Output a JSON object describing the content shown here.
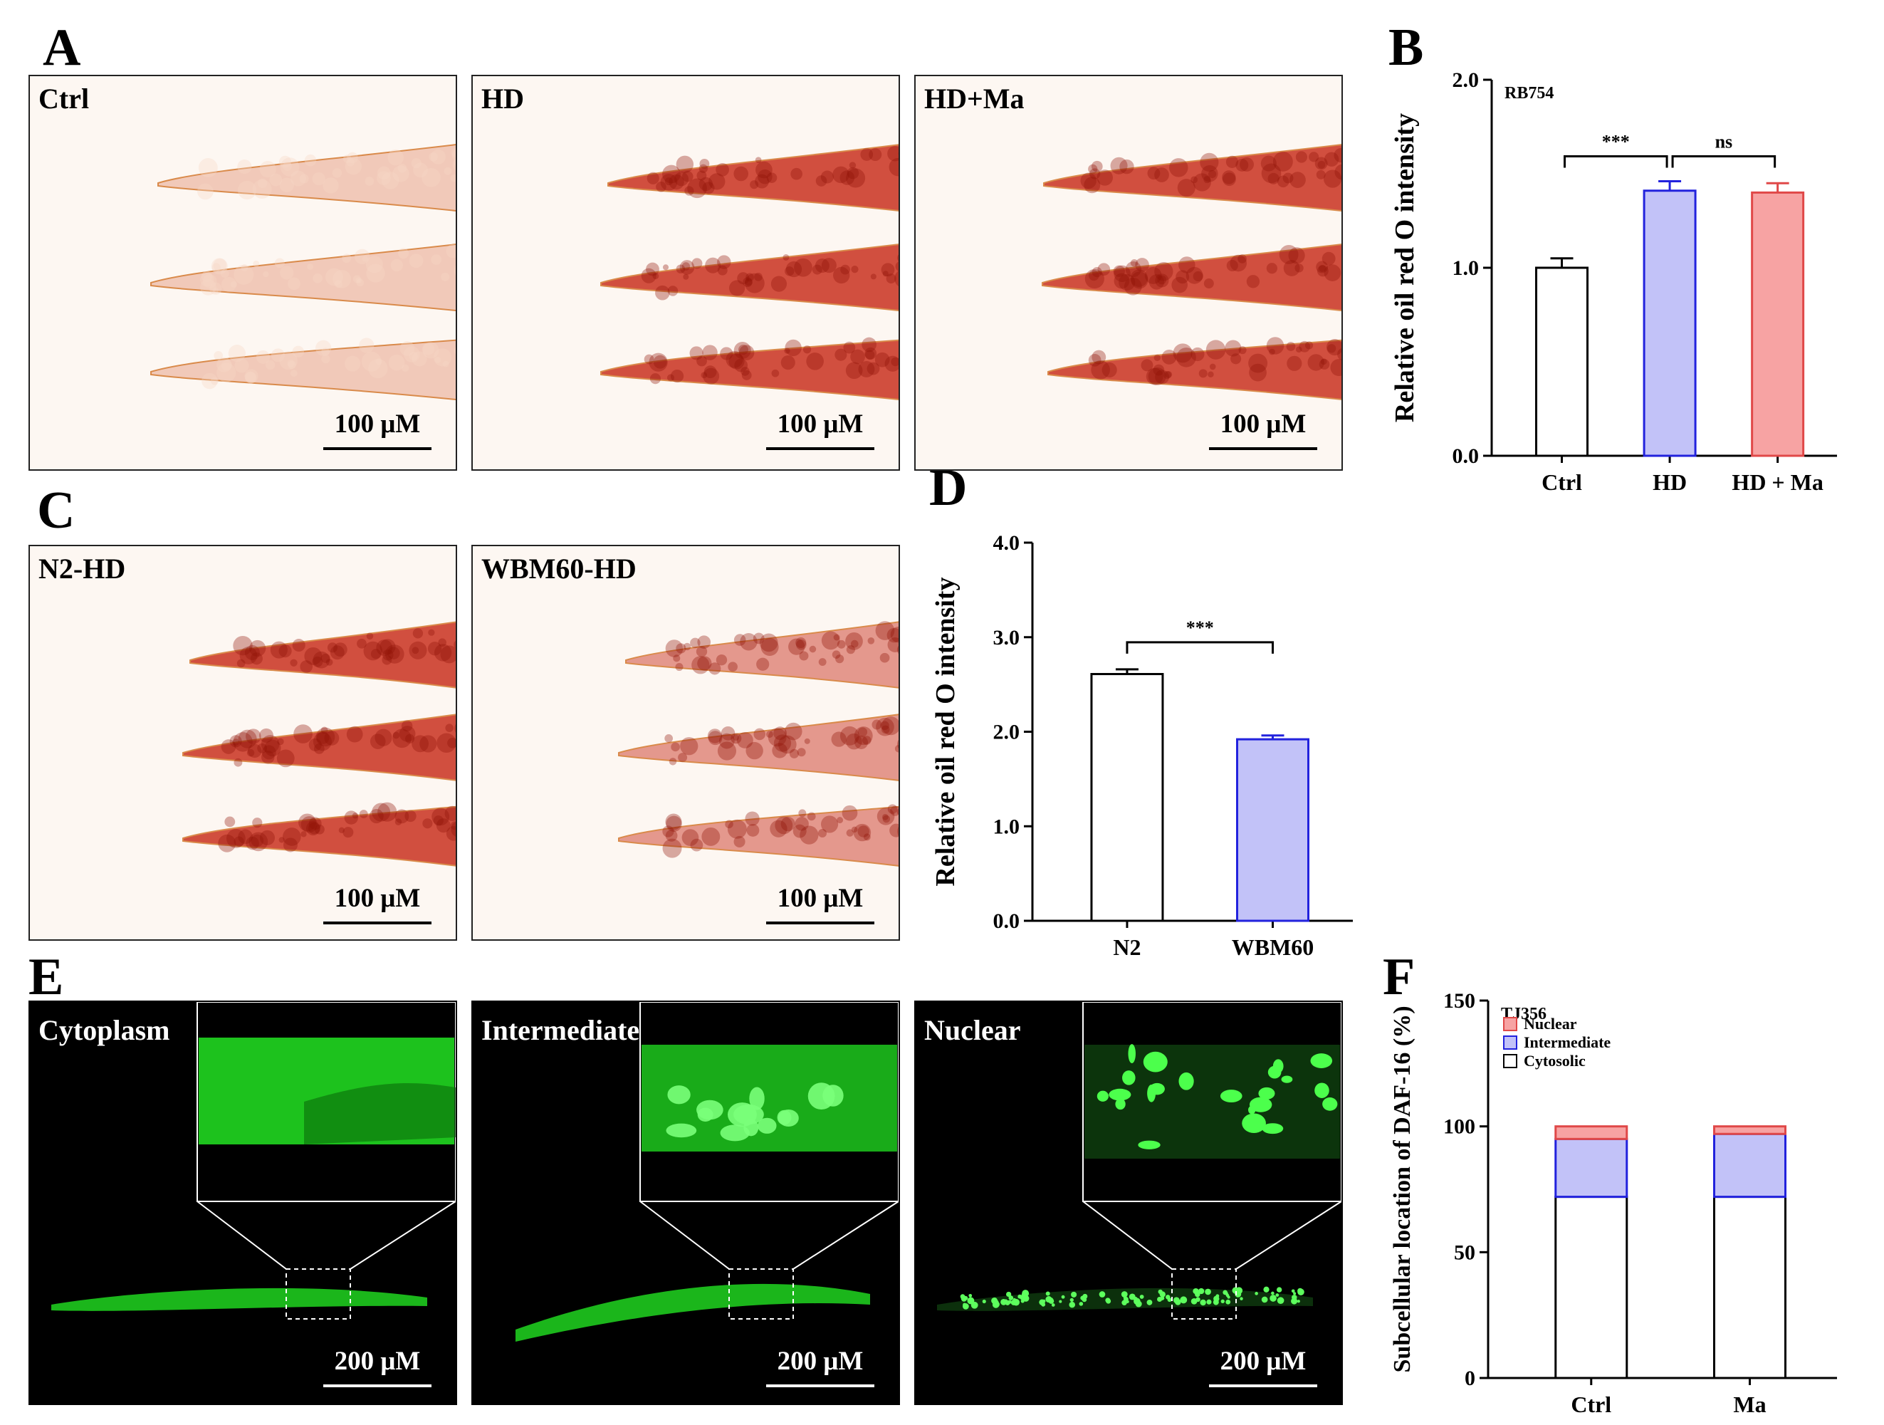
{
  "panel_labels": {
    "a": "A",
    "b": "B",
    "c": "C",
    "d": "D",
    "e": "E",
    "f": "F"
  },
  "colors": {
    "worm_light": "#e8a48a",
    "worm_dark": "#c62412",
    "gfp": "#22e422",
    "bar_ctrl": "#ffffff",
    "bar_hd": "#c2c2f8",
    "bar_hd_edge": "#2222dd",
    "bar_ma": "#f7a3a3",
    "bar_ma_edge": "#e04848"
  },
  "panel_a": {
    "images": [
      {
        "title": "Ctrl",
        "scale": "100 μM",
        "tone": "light"
      },
      {
        "title": "HD",
        "scale": "100 μM",
        "tone": "dark"
      },
      {
        "title": "HD+Ma",
        "scale": "100 μM",
        "tone": "dark"
      }
    ]
  },
  "panel_c": {
    "images": [
      {
        "title": "N2-HD",
        "scale": "100 μM",
        "tone": "dark"
      },
      {
        "title": "WBM60-HD",
        "scale": "100 μM",
        "tone": "medium"
      }
    ]
  },
  "panel_e": {
    "images": [
      {
        "title": "Cytoplasm",
        "scale": "200 μM",
        "pattern": "diffuse"
      },
      {
        "title": "Intermediate",
        "scale": "200 μM",
        "pattern": "intermediate"
      },
      {
        "title": "Nuclear",
        "scale": "200 μM",
        "pattern": "nuclear"
      }
    ]
  },
  "chart_data": [
    {
      "panel": "B",
      "type": "bar",
      "title": "RB754",
      "ylabel": "Relative oil red O intensity",
      "ylim": [
        0,
        2.0
      ],
      "yticks": [
        "0.0",
        "1.0",
        "2.0"
      ],
      "categories": [
        "Ctrl",
        "HD",
        "HD + Ma"
      ],
      "values": [
        1.0,
        1.41,
        1.4
      ],
      "errors": [
        0.05,
        0.05,
        0.05
      ],
      "significance": [
        {
          "from": "Ctrl",
          "to": "HD",
          "label": "***"
        },
        {
          "from": "HD",
          "to": "HD + Ma",
          "label": "ns"
        }
      ]
    },
    {
      "panel": "D",
      "type": "bar",
      "ylabel": "Relative oil red O intensity",
      "ylim": [
        0,
        4.0
      ],
      "yticks": [
        "0.0",
        "1.0",
        "2.0",
        "3.0",
        "4.0"
      ],
      "categories": [
        "N2",
        "WBM60"
      ],
      "values": [
        2.61,
        1.92
      ],
      "errors": [
        0.05,
        0.04
      ],
      "significance": [
        {
          "from": "N2",
          "to": "WBM60",
          "label": "***"
        }
      ]
    },
    {
      "panel": "F",
      "type": "bar",
      "stacked": true,
      "title": "TJ356",
      "ylabel": "Subcellular location of DAF-16 (%)",
      "ylim": [
        0,
        150
      ],
      "yticks": [
        "0",
        "50",
        "100",
        "150"
      ],
      "categories": [
        "Ctrl",
        "Ma"
      ],
      "series": [
        {
          "name": "Cytosolic",
          "values": [
            72,
            72
          ]
        },
        {
          "name": "Intermediate",
          "values": [
            23,
            25
          ]
        },
        {
          "name": "Nuclear",
          "values": [
            5,
            3
          ]
        }
      ],
      "legend": [
        "Nuclear",
        "Intermediate",
        "Cytosolic"
      ],
      "legend_position": "top-left"
    }
  ]
}
